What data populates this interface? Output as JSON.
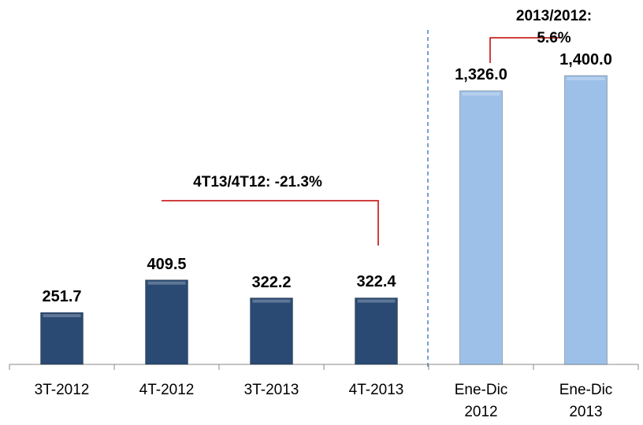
{
  "chart_data": {
    "type": "bar",
    "categories": [
      "3T-2012",
      "4T-2012",
      "3T-2013",
      "4T-2013",
      "Ene-Dic\n2012",
      "Ene-Dic\n2013"
    ],
    "values": [
      251.7,
      409.5,
      322.2,
      322.4,
      1326.0,
      1400.0
    ],
    "value_labels": [
      "251.7",
      "409.5",
      "322.2",
      "322.4",
      "1,326.0",
      "1,400.0"
    ],
    "colors": [
      "#2a4a73",
      "#2a4a73",
      "#2a4a73",
      "#2a4a73",
      "#9cc0e8",
      "#9cc0e8"
    ],
    "annotations": [
      "4T13/4T12: -21.3%",
      "2013/2012: 5.6%"
    ]
  }
}
